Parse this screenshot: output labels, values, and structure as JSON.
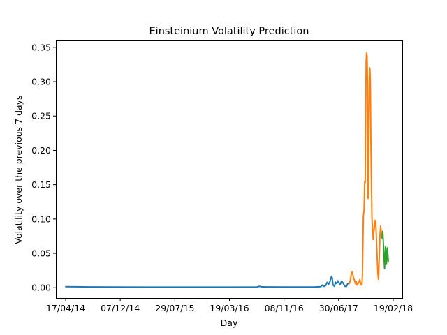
{
  "chart_data": {
    "type": "line",
    "title": "Einsteinium Volatility Prediction",
    "xlabel": "Day",
    "ylabel": "Volatility over the previous 7 days",
    "x_ticks": [
      "17/04/14",
      "07/12/14",
      "29/07/15",
      "19/03/16",
      "08/11/16",
      "30/06/17",
      "19/02/18"
    ],
    "xlim": [
      "2014-03-06",
      "2018-03-30"
    ],
    "y_ticks": [
      0.0,
      0.05,
      0.1,
      0.15,
      0.2,
      0.25,
      0.3,
      0.35
    ],
    "y_tick_labels": [
      "0.00",
      "0.05",
      "0.10",
      "0.15",
      "0.20",
      "0.25",
      "0.30",
      "0.35"
    ],
    "ylim": [
      -0.015,
      0.36
    ],
    "grid": false,
    "series": [
      {
        "color": "#1f77b4",
        "points": [
          [
            "2014-04-17",
            0.0015
          ],
          [
            "2014-07-01",
            0.0012
          ],
          [
            "2014-11-01",
            0.001
          ],
          [
            "2015-04-01",
            0.0009
          ],
          [
            "2015-10-01",
            0.0009
          ],
          [
            "2016-04-01",
            0.0009
          ],
          [
            "2016-07-15",
            0.001
          ],
          [
            "2016-07-25",
            0.002
          ],
          [
            "2016-08-05",
            0.0012
          ],
          [
            "2016-11-08",
            0.001
          ],
          [
            "2017-03-15",
            0.001
          ],
          [
            "2017-04-15",
            0.0015
          ],
          [
            "2017-04-22",
            0.004
          ],
          [
            "2017-04-28",
            0.002
          ],
          [
            "2017-05-05",
            0.003
          ],
          [
            "2017-05-12",
            0.008
          ],
          [
            "2017-05-18",
            0.005
          ],
          [
            "2017-05-24",
            0.009
          ],
          [
            "2017-05-30",
            0.016
          ],
          [
            "2017-06-02",
            0.015
          ],
          [
            "2017-06-06",
            0.004
          ],
          [
            "2017-06-12",
            0.002
          ],
          [
            "2017-06-17",
            0.008
          ],
          [
            "2017-06-22",
            0.006
          ],
          [
            "2017-06-27",
            0.01
          ],
          [
            "2017-07-02",
            0.007
          ],
          [
            "2017-07-07",
            0.005
          ],
          [
            "2017-07-12",
            0.009
          ],
          [
            "2017-07-17",
            0.008
          ],
          [
            "2017-07-22",
            0.005
          ],
          [
            "2017-07-27",
            0.002
          ],
          [
            "2017-08-03",
            0.002
          ],
          [
            "2017-08-08",
            0.006
          ],
          [
            "2017-08-14",
            0.007
          ]
        ]
      },
      {
        "color": "#ff7f0e",
        "points": [
          [
            "2017-08-15",
            0.006
          ],
          [
            "2017-08-20",
            0.012
          ],
          [
            "2017-08-24",
            0.022
          ],
          [
            "2017-08-28",
            0.023
          ],
          [
            "2017-09-02",
            0.014
          ],
          [
            "2017-09-06",
            0.011
          ],
          [
            "2017-09-10",
            0.006
          ],
          [
            "2017-09-13",
            0.009
          ],
          [
            "2017-09-17",
            0.004
          ],
          [
            "2017-09-21",
            0.006
          ],
          [
            "2017-09-25",
            0.008
          ],
          [
            "2017-09-29",
            0.012
          ],
          [
            "2017-10-02",
            0.006
          ],
          [
            "2017-10-05",
            0.004
          ],
          [
            "2017-10-08",
            0.004
          ],
          [
            "2017-10-10",
            0.02
          ],
          [
            "2017-10-12",
            0.06
          ],
          [
            "2017-10-14",
            0.104
          ],
          [
            "2017-10-17",
            0.113
          ],
          [
            "2017-10-20",
            0.155
          ],
          [
            "2017-10-22",
            0.153
          ],
          [
            "2017-10-24",
            0.25
          ],
          [
            "2017-10-26",
            0.33
          ],
          [
            "2017-10-28",
            0.342
          ],
          [
            "2017-10-30",
            0.337
          ],
          [
            "2017-11-01",
            0.295
          ],
          [
            "2017-11-02",
            0.19
          ],
          [
            "2017-11-03",
            0.13
          ],
          [
            "2017-11-05",
            0.135
          ],
          [
            "2017-11-07",
            0.25
          ],
          [
            "2017-11-09",
            0.31
          ],
          [
            "2017-11-11",
            0.32
          ],
          [
            "2017-11-13",
            0.3
          ],
          [
            "2017-11-15",
            0.22
          ],
          [
            "2017-11-17",
            0.17
          ],
          [
            "2017-11-20",
            0.1
          ],
          [
            "2017-11-23",
            0.085
          ],
          [
            "2017-11-25",
            0.07
          ],
          [
            "2017-11-27",
            0.08
          ],
          [
            "2017-11-30",
            0.087
          ],
          [
            "2017-12-03",
            0.098
          ],
          [
            "2017-12-06",
            0.095
          ],
          [
            "2017-12-09",
            0.072
          ],
          [
            "2017-12-12",
            0.045
          ],
          [
            "2017-12-15",
            0.022
          ],
          [
            "2017-12-18",
            0.012
          ],
          [
            "2017-12-21",
            0.042
          ],
          [
            "2017-12-24",
            0.075
          ],
          [
            "2017-12-27",
            0.09
          ],
          [
            "2017-12-30",
            0.08
          ],
          [
            "2018-01-03",
            0.072
          ]
        ]
      },
      {
        "color": "#2ca02c",
        "points": [
          [
            "2018-01-03",
            0.072
          ],
          [
            "2018-01-05",
            0.082
          ],
          [
            "2018-01-07",
            0.07
          ],
          [
            "2018-01-09",
            0.055
          ],
          [
            "2018-01-11",
            0.04
          ],
          [
            "2018-01-13",
            0.028
          ],
          [
            "2018-01-15",
            0.045
          ],
          [
            "2018-01-17",
            0.06
          ],
          [
            "2018-01-19",
            0.052
          ],
          [
            "2018-01-21",
            0.035
          ],
          [
            "2018-01-23",
            0.045
          ],
          [
            "2018-01-25",
            0.058
          ],
          [
            "2018-01-27",
            0.048
          ],
          [
            "2018-01-29",
            0.038
          ]
        ]
      }
    ]
  }
}
